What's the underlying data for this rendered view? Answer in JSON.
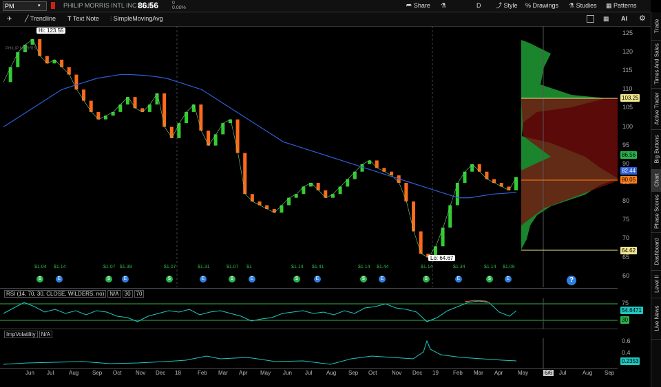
{
  "header": {
    "symbol": "PM",
    "company": "PHILIP MORRIS INTL INC COM",
    "zero_change": "0",
    "pct_change": "0.00%",
    "last_price": "86.56",
    "share": "Share",
    "d": "D",
    "style": "Style",
    "drawings": "Drawings",
    "studies": "Studies",
    "patterns": "Patterns"
  },
  "toolbar": {
    "trendline": "Trendline",
    "textnote": "Text Note",
    "sma": "SimpleMovingAvg"
  },
  "sidebar": [
    "Trade",
    "Times And Sales",
    "Active Trader",
    "Big Buttons",
    "Chart",
    "Phase Scores",
    "Dashboard",
    "Level II",
    "Live News"
  ],
  "annotations": {
    "hi": "Hi: 123.55",
    "lo": "Lo: 64.67",
    "logo": "PHILIP MORRIS"
  },
  "price_axis": {
    "ticks": [
      "125",
      "120",
      "115",
      "110",
      "105",
      "100",
      "95",
      "90",
      "85",
      "80",
      "75",
      "70",
      "65",
      "60"
    ],
    "hl_lines": [
      "103.25",
      "64.62"
    ],
    "badges": {
      "last": "86.56",
      "sma": "82.44",
      "poc": "80.05",
      "high": "103.25",
      "low": "64.62"
    },
    "colors": {
      "last": "#2bb24c",
      "sma": "#2e5fd8",
      "poc": "#ff7f1a",
      "price_line": "#f0e68c"
    }
  },
  "dividends": [
    "$1.04",
    "$1.14",
    "$1.07",
    "$1.39",
    "$1.07",
    "$1.31",
    "$1.07",
    "$1",
    "$1.14",
    "$1.41",
    "$1.14",
    "$1.44",
    "$1.14",
    "$1.34",
    "$1.14",
    "$1.09"
  ],
  "rsi": {
    "label": "RSI (14, 70, 30, CLOSE, WILDERS, no)",
    "na": "N/A",
    "ob": "30",
    "os": "70",
    "axis": [
      "75",
      "30"
    ],
    "value": "54.6471",
    "low_badge": "30"
  },
  "iv": {
    "label": "ImpVolatility",
    "na": "N/A",
    "axis": [
      "0.6",
      "0.4"
    ],
    "value": "0.2353"
  },
  "date_axis": [
    "Jun",
    "Jul",
    "Aug",
    "Sep",
    "Oct",
    "Nov",
    "Dec",
    "18",
    "Feb",
    "Mar",
    "Apr",
    "May",
    "Jun",
    "Jul",
    "Aug",
    "Sep",
    "Oct",
    "Nov",
    "Dec",
    "19",
    "Feb",
    "Mar",
    "Apr",
    "May",
    "6/6",
    "Jul",
    "Aug",
    "Sep"
  ],
  "chart_data": {
    "type": "line",
    "title": "",
    "ylabel": "",
    "ylim": [
      57,
      127
    ],
    "series": [
      {
        "values": [
          112,
          116,
          120,
          122,
          123.5,
          119,
          117,
          118,
          116,
          114,
          110,
          107,
          104,
          102,
          103,
          104,
          106,
          108,
          105,
          104,
          106,
          109,
          100,
          97,
          101,
          104,
          106,
          99,
          95,
          98,
          101,
          102,
          93,
          82,
          80,
          79,
          78,
          77,
          79,
          81,
          82,
          84,
          85,
          83,
          81,
          82,
          84,
          86,
          88,
          90,
          91,
          89,
          88,
          87,
          85,
          80,
          72,
          66,
          65,
          68,
          73,
          79,
          85,
          88,
          90,
          88,
          86,
          85,
          84,
          83,
          86.56
        ]
      },
      {
        "values": [
          100,
          102,
          104,
          106,
          108,
          110,
          111,
          112,
          113,
          113.5,
          114,
          114,
          113.8,
          113.5,
          113,
          112,
          111,
          110,
          108,
          106,
          104,
          102,
          100,
          98,
          96,
          95,
          94,
          93,
          92,
          91,
          90,
          89,
          88,
          87,
          86,
          85,
          84,
          83,
          82,
          81,
          81,
          81.5,
          82,
          82.2,
          82.44
        ]
      }
    ]
  }
}
